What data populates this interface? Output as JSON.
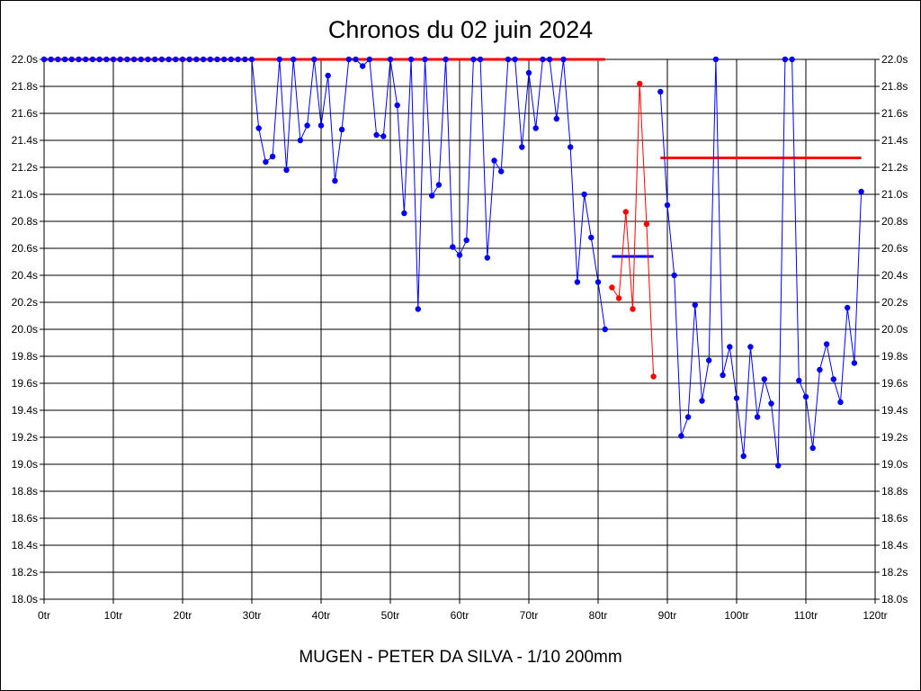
{
  "chart_data": {
    "type": "line",
    "title": "Chronos du 02 juin 2024",
    "subtitle": "MUGEN - PETER DA SILVA - 1/10 200mm",
    "xlabel": "",
    "ylabel": "",
    "xlim": [
      0,
      120
    ],
    "ylim": [
      18.0,
      22.0
    ],
    "grid": true,
    "x_ticks": [
      "0tr",
      "10tr",
      "20tr",
      "30tr",
      "40tr",
      "50tr",
      "60tr",
      "70tr",
      "80tr",
      "90tr",
      "100tr",
      "110tr",
      "120tr"
    ],
    "y_ticks": [
      "18.0s",
      "18.2s",
      "18.4s",
      "18.6s",
      "18.8s",
      "19.0s",
      "19.2s",
      "19.4s",
      "19.6s",
      "19.8s",
      "20.0s",
      "20.2s",
      "20.4s",
      "20.6s",
      "20.8s",
      "21.0s",
      "21.2s",
      "21.4s",
      "21.6s",
      "21.8s",
      "22.0s"
    ],
    "series": [
      {
        "color": "#0000ff",
        "x": [
          0,
          1,
          2,
          3,
          4,
          5,
          6,
          7,
          8,
          9,
          10,
          11,
          12,
          13,
          14,
          15,
          16,
          17,
          18,
          19,
          20,
          21,
          22,
          23,
          24,
          25,
          26,
          27,
          28,
          29,
          30,
          31,
          32,
          33,
          34,
          35,
          36,
          37,
          38,
          39,
          40,
          41,
          42,
          43,
          44,
          45,
          46,
          47,
          48,
          49,
          50,
          51,
          52,
          53,
          54,
          55,
          56,
          57,
          58,
          59,
          60,
          61,
          62,
          63,
          64,
          65,
          66,
          67,
          68,
          69,
          70,
          71,
          72,
          73,
          74,
          75,
          76,
          77,
          78,
          79,
          80,
          81
        ],
        "y": [
          22.0,
          22.0,
          22.0,
          22.0,
          22.0,
          22.0,
          22.0,
          22.0,
          22.0,
          22.0,
          22.0,
          22.0,
          22.0,
          22.0,
          22.0,
          22.0,
          22.0,
          22.0,
          22.0,
          22.0,
          22.0,
          22.0,
          22.0,
          22.0,
          22.0,
          22.0,
          22.0,
          22.0,
          22.0,
          22.0,
          22.0,
          21.49,
          21.24,
          21.28,
          22.0,
          21.18,
          22.0,
          21.4,
          21.51,
          22.0,
          21.51,
          21.88,
          21.1,
          21.48,
          22.0,
          22.0,
          21.95,
          22.0,
          21.44,
          21.43,
          22.0,
          21.66,
          20.86,
          22.0,
          20.15,
          22.0,
          20.99,
          21.07,
          22.0,
          20.61,
          20.55,
          20.66,
          22.0,
          22.0,
          20.53,
          21.25,
          21.17,
          22.0,
          22.0,
          21.35,
          21.9,
          21.49,
          22.0,
          22.0,
          21.56,
          22.0,
          21.35,
          20.35,
          21.0,
          20.68,
          20.35,
          20.0
        ]
      },
      {
        "color": "#ff0000",
        "x": [
          82,
          83,
          84,
          85,
          86,
          87,
          88
        ],
        "y": [
          20.31,
          20.23,
          20.87,
          20.15,
          21.82,
          20.78,
          19.65
        ]
      },
      {
        "color": "#0000ff",
        "x": [
          89,
          90,
          91,
          92,
          93,
          94,
          95,
          96,
          97,
          98,
          99,
          100,
          101,
          102,
          103,
          104,
          105,
          106,
          107,
          108,
          109,
          110,
          111,
          112,
          113,
          114,
          115,
          116,
          117,
          118
        ],
        "y": [
          21.76,
          20.92,
          20.4,
          19.21,
          19.35,
          20.18,
          19.47,
          19.77,
          22.0,
          19.66,
          19.87,
          19.49,
          19.06,
          19.87,
          19.35,
          19.63,
          19.45,
          18.99,
          22.0,
          22.0,
          19.62,
          19.5,
          19.12,
          19.7,
          19.89,
          19.63,
          19.46,
          20.16,
          19.75,
          21.02
        ]
      }
    ],
    "reference_lines": [
      {
        "color": "#ff0000",
        "x": [
          0,
          81
        ],
        "y": 22.0
      },
      {
        "color": "#0000ff",
        "x": [
          82,
          88
        ],
        "y": 20.54
      },
      {
        "color": "#ff0000",
        "x": [
          89,
          118
        ],
        "y": 21.27
      }
    ]
  }
}
